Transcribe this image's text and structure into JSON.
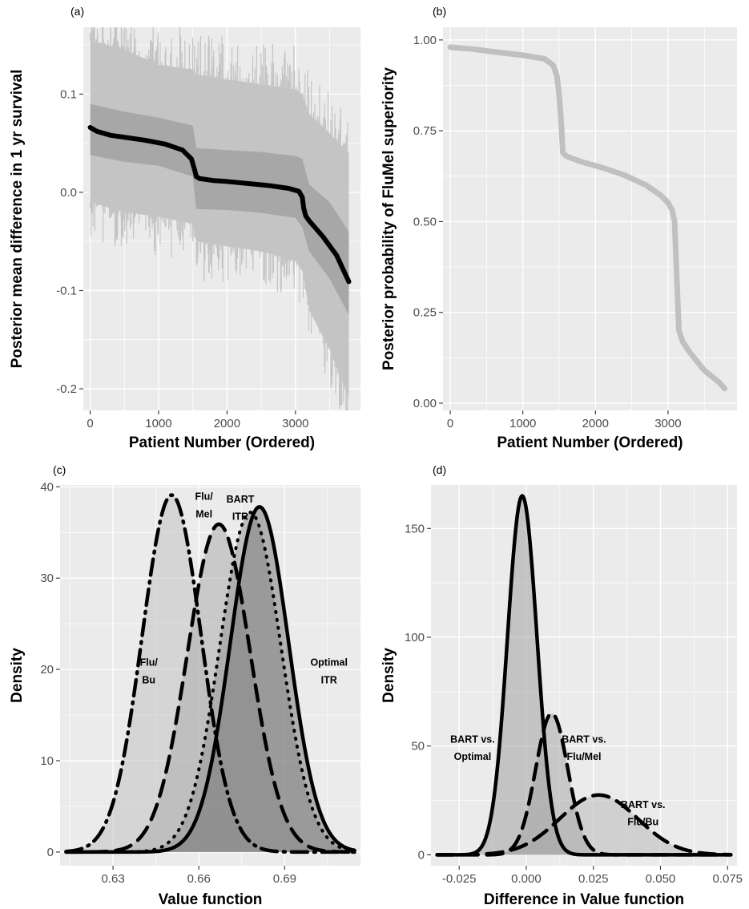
{
  "chart_data": [
    {
      "panel_label": "(a)",
      "type": "line",
      "xlabel": "Patient Number (Ordered)",
      "ylabel": "Posterior mean difference in 1 yr survival",
      "xlim": [
        -100,
        3950
      ],
      "ylim": [
        -0.222,
        0.168
      ],
      "xticks": [
        0,
        1000,
        2000,
        3000
      ],
      "xtick_labels": [
        "0",
        "1000",
        "2000",
        "3000"
      ],
      "yticks": [
        -0.2,
        -0.1,
        0.0,
        0.1
      ],
      "ytick_labels": [
        "-0.2",
        "-0.1",
        "0.0",
        "0.1"
      ],
      "grid": true,
      "series": [
        {
          "role": "posterior mean",
          "color": "#000000",
          "x": [
            0,
            100,
            300,
            500,
            800,
            1100,
            1350,
            1480,
            1530,
            1550,
            1600,
            1800,
            2000,
            2300,
            2600,
            2900,
            3050,
            3100,
            3120,
            3150,
            3200,
            3400,
            3600,
            3780
          ],
          "y": [
            0.066,
            0.062,
            0.058,
            0.056,
            0.053,
            0.049,
            0.043,
            0.034,
            0.022,
            0.016,
            0.014,
            0.012,
            0.011,
            0.009,
            0.007,
            0.004,
            0.001,
            -0.005,
            -0.016,
            -0.024,
            -0.029,
            -0.045,
            -0.064,
            -0.091
          ]
        }
      ],
      "bands": [
        {
          "role": "inner interval",
          "color": "#a7a7a7",
          "x": [
            0,
            500,
            1000,
            1500,
            1550,
            2000,
            2500,
            3000,
            3100,
            3200,
            3500,
            3780
          ],
          "upper": [
            0.09,
            0.082,
            0.076,
            0.068,
            0.045,
            0.043,
            0.041,
            0.037,
            0.034,
            0.008,
            -0.01,
            -0.04
          ],
          "lower": [
            0.038,
            0.031,
            0.027,
            0.016,
            -0.017,
            -0.018,
            -0.021,
            -0.026,
            -0.036,
            -0.06,
            -0.088,
            -0.125
          ]
        },
        {
          "role": "outer interval",
          "color": "#c4c4c4",
          "x": [
            0,
            500,
            1000,
            1500,
            1550,
            2000,
            2500,
            3000,
            3100,
            3200,
            3500,
            3780
          ],
          "upper": [
            0.155,
            0.145,
            0.13,
            0.125,
            0.12,
            0.115,
            0.11,
            0.105,
            0.1,
            0.08,
            0.06,
            0.04
          ],
          "lower": [
            -0.01,
            -0.02,
            -0.025,
            -0.032,
            -0.05,
            -0.055,
            -0.06,
            -0.07,
            -0.08,
            -0.12,
            -0.16,
            -0.21
          ]
        }
      ]
    },
    {
      "panel_label": "(b)",
      "type": "line",
      "xlabel": "Patient Number (Ordered)",
      "ylabel": "Posterior probability of FluMel superiority",
      "xlim": [
        -100,
        3950
      ],
      "ylim": [
        -0.02,
        1.035
      ],
      "xticks": [
        0,
        1000,
        2000,
        3000
      ],
      "xtick_labels": [
        "0",
        "1000",
        "2000",
        "3000"
      ],
      "yticks": [
        0.0,
        0.25,
        0.5,
        0.75,
        1.0
      ],
      "ytick_labels": [
        "0.00",
        "0.25",
        "0.50",
        "0.75",
        "1.00"
      ],
      "grid": true,
      "series": [
        {
          "role": "posterior probability",
          "color": "#c0c0c0",
          "x": [
            0,
            300,
            700,
            1000,
            1300,
            1420,
            1470,
            1500,
            1530,
            1550,
            1600,
            1800,
            2100,
            2400,
            2700,
            2900,
            3000,
            3060,
            3090,
            3110,
            3130,
            3150,
            3200,
            3300,
            3500,
            3700,
            3780
          ],
          "y": [
            0.98,
            0.975,
            0.965,
            0.958,
            0.948,
            0.93,
            0.9,
            0.85,
            0.77,
            0.69,
            0.68,
            0.665,
            0.648,
            0.628,
            0.6,
            0.572,
            0.552,
            0.53,
            0.5,
            0.4,
            0.3,
            0.2,
            0.17,
            0.14,
            0.09,
            0.058,
            0.04
          ]
        }
      ]
    },
    {
      "panel_label": "(c)",
      "type": "area",
      "xlabel": "Value function",
      "ylabel": "Density",
      "xlim": [
        0.6115,
        0.7165
      ],
      "ylim": [
        -1.5,
        40.2
      ],
      "xticks": [
        0.63,
        0.66,
        0.69
      ],
      "xtick_labels": [
        "0.63",
        "0.66",
        "0.69"
      ],
      "yticks": [
        0,
        10,
        20,
        30,
        40
      ],
      "ytick_labels": [
        "0",
        "10",
        "20",
        "30",
        "40"
      ],
      "grid": true,
      "annotations": [
        {
          "lines": [
            "Flu/",
            "Bu"
          ],
          "x": 0.6425,
          "y": 20
        },
        {
          "lines": [
            "Flu/",
            "Mel"
          ],
          "x": 0.6618,
          "y": 38.2
        },
        {
          "lines": [
            "BART",
            "ITR"
          ],
          "x": 0.6745,
          "y": 37.9
        },
        {
          "lines": [
            "Optimal",
            "ITR"
          ],
          "x": 0.7055,
          "y": 20
        }
      ],
      "series": [
        {
          "name": "Flu/Bu",
          "style": "longdash-dot",
          "fill": "#c2c2c2",
          "mean": 0.6505,
          "sd": 0.0103,
          "peak": 39.1
        },
        {
          "name": "Flu/Mel",
          "style": "longdash",
          "fill": "#adadad",
          "mean": 0.667,
          "sd": 0.011,
          "peak": 35.9
        },
        {
          "name": "BART ITR",
          "style": "dotted",
          "fill": "#979797",
          "mean": 0.678,
          "sd": 0.0107,
          "peak": 37.2
        },
        {
          "name": "Optimal ITR",
          "style": "solid",
          "fill": "#7e7e7e",
          "mean": 0.6812,
          "sd": 0.0102,
          "peak": 37.8
        }
      ]
    },
    {
      "panel_label": "(d)",
      "type": "area",
      "xlabel": "Difference in Value function",
      "ylabel": "Density",
      "xlim": [
        -0.0355,
        0.0785
      ],
      "ylim": [
        -5,
        170
      ],
      "xticks": [
        -0.025,
        0.0,
        0.025,
        0.05,
        0.075
      ],
      "xtick_labels": [
        "-0.025",
        "0.000",
        "0.025",
        "0.050",
        "0.075"
      ],
      "yticks": [
        0,
        50,
        100,
        150
      ],
      "ytick_labels": [
        "0",
        "50",
        "100",
        "150"
      ],
      "grid": true,
      "annotations": [
        {
          "lines": [
            "BART vs.",
            "Optimal"
          ],
          "x": -0.02,
          "y": 50
        },
        {
          "lines": [
            "BART vs.",
            "Flu/Mel"
          ],
          "x": 0.0215,
          "y": 50
        },
        {
          "lines": [
            "BART vs.",
            "Flu/Bu"
          ],
          "x": 0.0435,
          "y": 20
        }
      ],
      "series": [
        {
          "name": "BART vs. Flu/Bu",
          "style": "longdash",
          "fill": "#b9b9b9",
          "mean": 0.027,
          "sd": 0.0145,
          "peak": 27.5
        },
        {
          "name": "BART vs. Flu/Mel",
          "style": "longdash",
          "fill": "#a9a9a9",
          "mean": 0.0095,
          "sd": 0.006,
          "peak": 65
        },
        {
          "name": "BART vs. Optimal",
          "style": "solid",
          "fill": "#a2a2a2",
          "mean": -0.0015,
          "sd": 0.0055,
          "peak": 165
        }
      ]
    }
  ]
}
